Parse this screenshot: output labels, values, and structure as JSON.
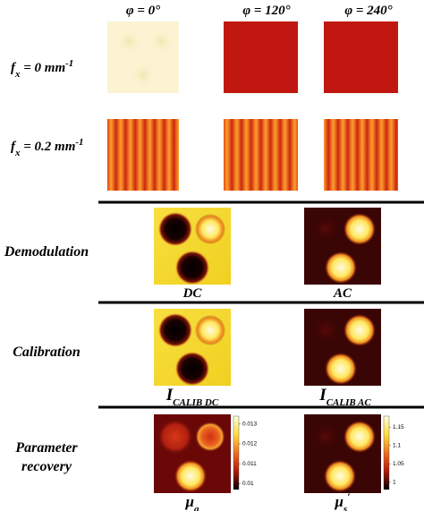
{
  "column_headers": [
    "φ = 0°",
    "φ = 120°",
    "φ = 240°"
  ],
  "row_labels": [
    {
      "symbol": "f",
      "subscript": "x",
      "text": " = 0 mm",
      "superscript": "-1"
    },
    {
      "symbol": "f",
      "subscript": "x",
      "text": " = 0.2 mm",
      "superscript": "-1"
    }
  ],
  "sections": [
    {
      "label_lines": [
        "Demodulation"
      ],
      "images": [
        {
          "main": "DC"
        },
        {
          "main": "AC"
        }
      ]
    },
    {
      "label_lines": [
        "Calibration"
      ],
      "images": [
        {
          "main": "I",
          "sub": "CALIB DC"
        },
        {
          "main": "I",
          "sub": "CALIB AC"
        }
      ]
    },
    {
      "label_lines": [
        "Parameter",
        "recovery"
      ],
      "images": [
        {
          "main": "μ",
          "sub": "a"
        },
        {
          "main": "μ",
          "sub": "s",
          "sup": "′"
        }
      ]
    }
  ],
  "colorbars": [
    {
      "lim": [
        0.0097,
        0.0134
      ],
      "ticks": [
        0.013,
        0.012,
        0.011,
        0.01
      ]
    },
    {
      "lim": [
        0.98,
        1.18
      ],
      "ticks": [
        1.15,
        1.1,
        1.05,
        1
      ]
    }
  ]
}
